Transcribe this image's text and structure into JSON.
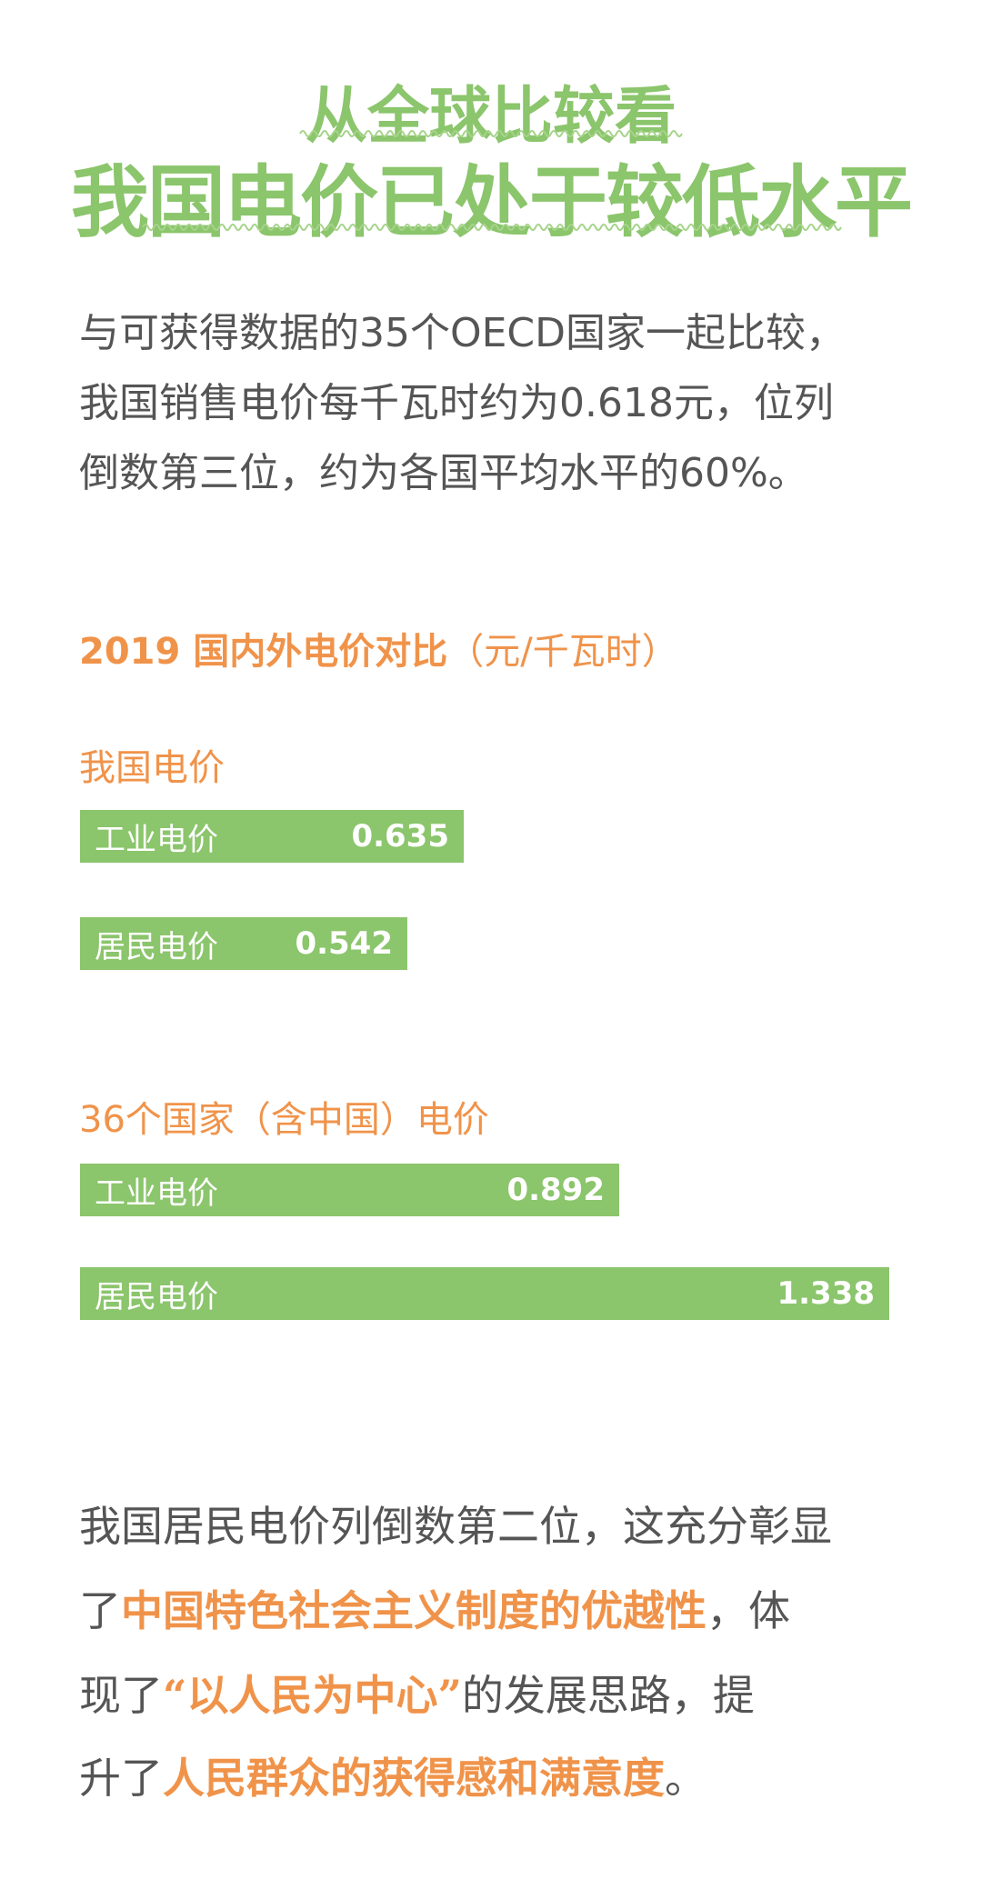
{
  "header": {
    "title_line1": "从全球比较看",
    "title_line2": "我国电价已处于较低水平"
  },
  "intro": {
    "lines": [
      "与可获得数据的35个OECD国家一起比较，",
      "我国销售电价每千瓦时约为0.618元，位列",
      "倒数第三位，约为各国平均水平的60%。"
    ]
  },
  "colors": {
    "green": "#8bc56c",
    "orange": "#f0934a",
    "text": "#555555"
  },
  "chart_data": {
    "type": "bar",
    "orientation": "horizontal",
    "title": "2019 国内外电价对比",
    "unit": "（元/千瓦时）",
    "groups": [
      {
        "name": "我国电价",
        "categories": [
          "工业电价",
          "居民电价"
        ],
        "values": [
          0.635,
          0.542
        ],
        "labels": [
          "0.635",
          "0.542"
        ]
      },
      {
        "name": "36个国家（含中国）电价",
        "categories": [
          "工业电价",
          "居民电价"
        ],
        "values": [
          0.892,
          1.338
        ],
        "labels": [
          "0.892",
          "1.338"
        ]
      }
    ]
  },
  "conclusion": {
    "l1": "我国居民电价列倒数第二位，这充分彰显",
    "l2a": "了",
    "l2b": "中国特色社会主义制度的优越性",
    "l2c": "，体",
    "l3a": "现了",
    "l3b": "“以人民为中心”",
    "l3c": "的发展思路，提",
    "l4a": "升了",
    "l4b": "人民群众的获得感和满意度",
    "l4c": "。"
  }
}
